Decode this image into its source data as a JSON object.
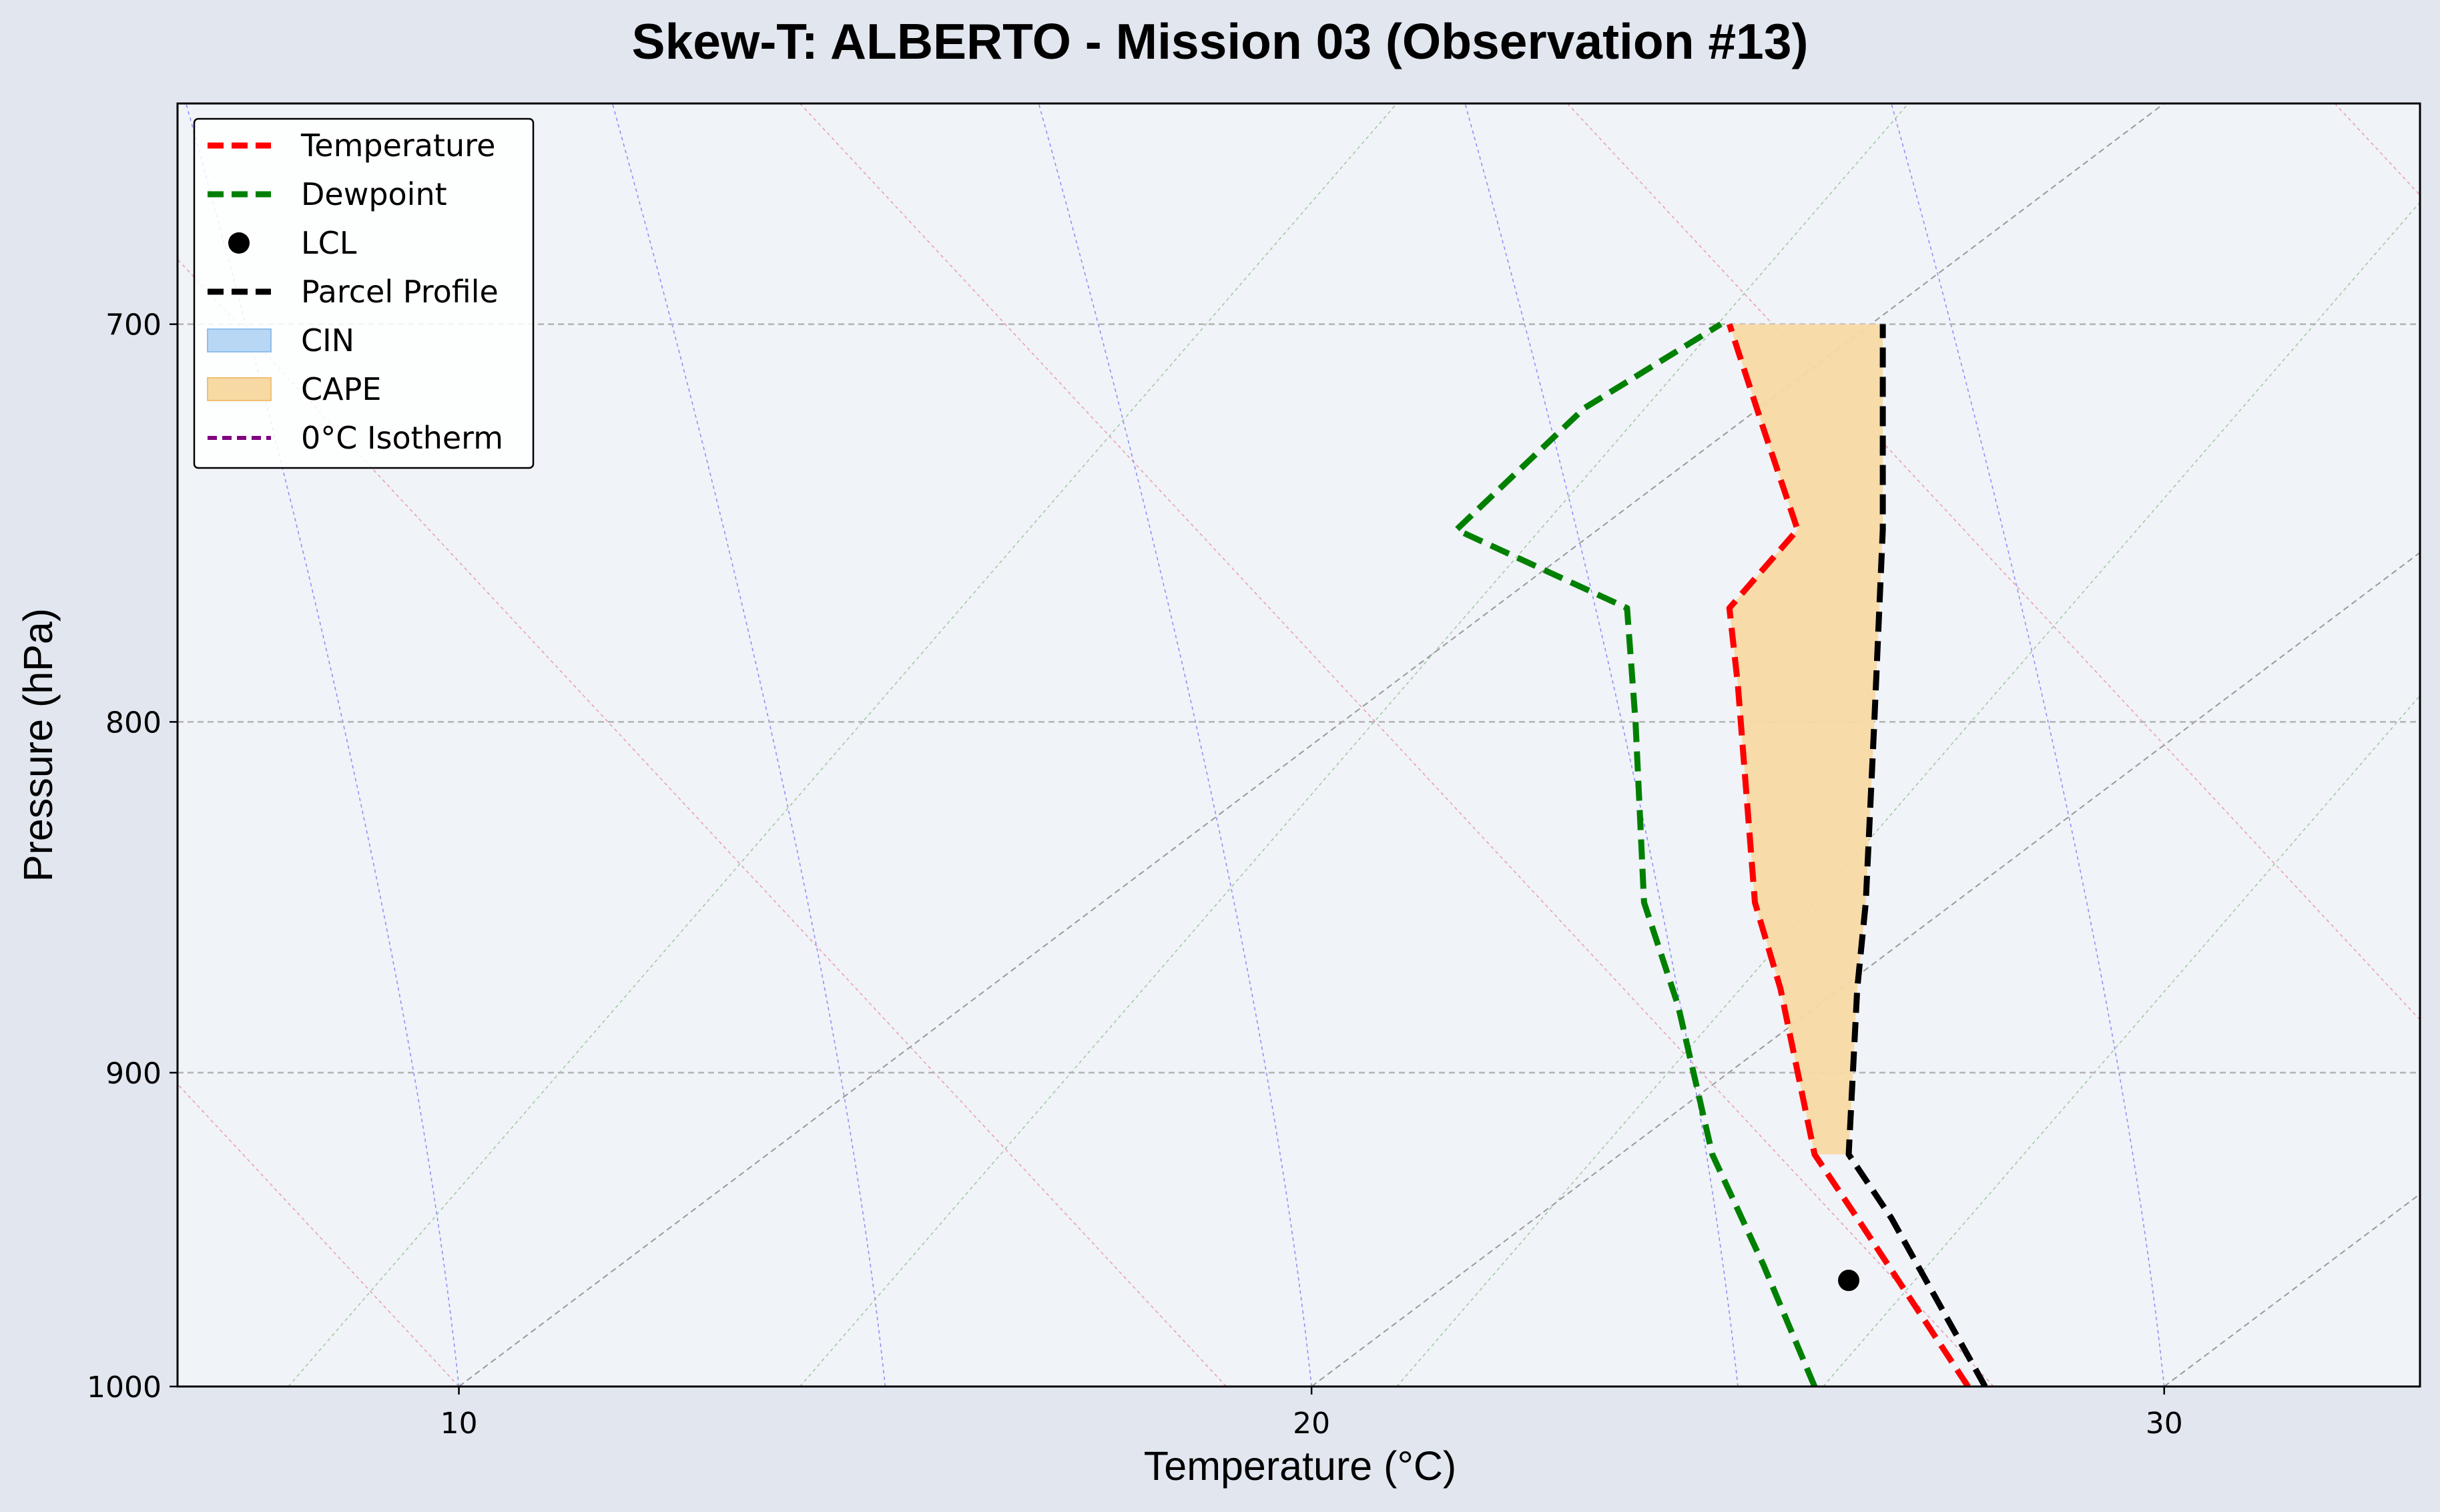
{
  "chart_data": {
    "type": "line",
    "title": "Skew-T: ALBERTO - Mission 03 (Observation #13)",
    "xlabel": "Temperature (°C)",
    "ylabel": "Pressure (hPa)",
    "xlim": [
      6.7,
      33.0
    ],
    "ylim": [
      1000,
      650
    ],
    "y_scale": "log",
    "x_ticks": [
      10,
      20,
      30
    ],
    "y_ticks": [
      700,
      800,
      900,
      1000
    ],
    "grid": true,
    "legend_position": "upper-left",
    "legend": [
      {
        "label": "Temperature",
        "color": "#ff0000",
        "style": "dashed"
      },
      {
        "label": "Dewpoint",
        "color": "#008000",
        "style": "dashed"
      },
      {
        "label": "LCL",
        "color": "#000000",
        "style": "marker"
      },
      {
        "label": "Parcel Profile",
        "color": "#000000",
        "style": "dashed"
      },
      {
        "label": "CIN",
        "color": "#b7d7f5",
        "style": "fill"
      },
      {
        "label": "CAPE",
        "color": "#f7d9a4",
        "style": "fill"
      },
      {
        "label": "0°C Isotherm",
        "color": "#800080",
        "style": "dashed"
      }
    ],
    "series": [
      {
        "name": "Temperature",
        "color": "#ff0000",
        "points": [
          [
            27.7,
            1000
          ],
          [
            26.4,
            945
          ],
          [
            25.9,
            925
          ],
          [
            25.5,
            875
          ],
          [
            25.2,
            850
          ],
          [
            25.0,
            790
          ],
          [
            24.9,
            770
          ],
          [
            25.7,
            750
          ],
          [
            25.3,
            725
          ],
          [
            24.9,
            700
          ]
        ]
      },
      {
        "name": "Dewpoint",
        "color": "#008000",
        "points": [
          [
            25.9,
            1000
          ],
          [
            25.3,
            960
          ],
          [
            24.7,
            925
          ],
          [
            24.3,
            880
          ],
          [
            23.9,
            850
          ],
          [
            23.8,
            800
          ],
          [
            23.7,
            770
          ],
          [
            21.7,
            750
          ],
          [
            23.2,
            720
          ],
          [
            24.8,
            700
          ]
        ]
      },
      {
        "name": "Parcel Profile",
        "color": "#000000",
        "points": [
          [
            27.9,
            1000
          ],
          [
            26.8,
            945
          ],
          [
            26.3,
            925
          ],
          [
            26.4,
            875
          ],
          [
            26.5,
            850
          ],
          [
            26.6,
            800
          ],
          [
            26.7,
            750
          ],
          [
            26.7,
            700
          ]
        ]
      }
    ],
    "cape_fill": {
      "upper": [
        [
          26.3,
          925
        ],
        [
          26.4,
          875
        ],
        [
          26.5,
          850
        ],
        [
          26.6,
          800
        ],
        [
          26.7,
          750
        ],
        [
          26.7,
          700
        ]
      ],
      "lower": [
        [
          24.9,
          700
        ],
        [
          25.3,
          725
        ],
        [
          25.7,
          750
        ],
        [
          24.9,
          770
        ],
        [
          25.0,
          790
        ],
        [
          25.2,
          850
        ],
        [
          25.5,
          875
        ],
        [
          25.9,
          925
        ]
      ]
    },
    "lcl": {
      "t": 26.3,
      "p": 965
    },
    "isotherm_0c": {
      "t": 0,
      "color": "#800080"
    }
  }
}
